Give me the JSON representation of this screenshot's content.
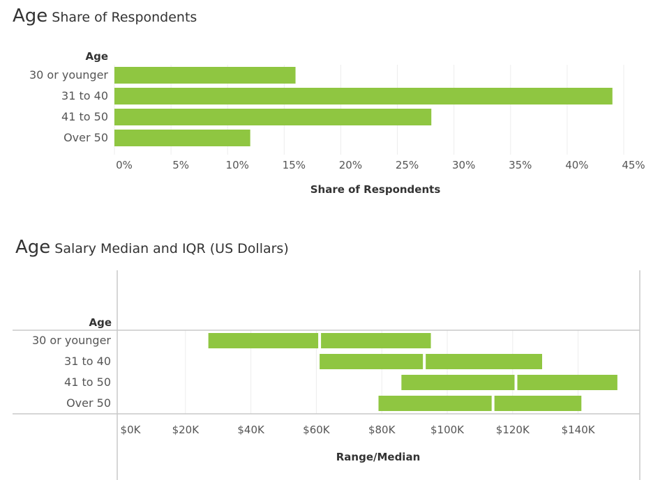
{
  "chart_data": [
    {
      "type": "bar",
      "orientation": "horizontal",
      "title_main": "Age",
      "title_sub": "Share of Respondents",
      "row_header": "Age",
      "categories": [
        "30 or younger",
        "31 to 40",
        "41 to 50",
        "Over 50"
      ],
      "values": [
        16,
        44,
        28,
        12
      ],
      "xlabel": "Share of Respondents",
      "xlim": [
        0,
        45
      ],
      "xticks": [
        0,
        5,
        10,
        15,
        20,
        25,
        30,
        35,
        40,
        45
      ],
      "tick_labels": [
        "0%",
        "5%",
        "10%",
        "15%",
        "20%",
        "25%",
        "30%",
        "35%",
        "40%",
        "45%"
      ],
      "grid": true,
      "color": "#8FC641"
    },
    {
      "type": "bar",
      "orientation": "horizontal-range",
      "title_main": "Age",
      "title_sub": "Salary Median and IQR (US Dollars)",
      "row_header": "Age",
      "categories": [
        "30 or younger",
        "31 to 40",
        "41 to 50",
        "Over 50"
      ],
      "ranges": [
        {
          "q1": 27000,
          "median": 61000,
          "q3": 95000
        },
        {
          "q1": 61000,
          "median": 93000,
          "q3": 129000
        },
        {
          "q1": 86000,
          "median": 121000,
          "q3": 152000
        },
        {
          "q1": 79000,
          "median": 114000,
          "q3": 141000
        }
      ],
      "xlabel": "Range/Median",
      "xlim": [
        0,
        150000
      ],
      "xticks": [
        0,
        20000,
        40000,
        60000,
        80000,
        100000,
        120000,
        140000
      ],
      "tick_labels": [
        "$0K",
        "$20K",
        "$40K",
        "$60K",
        "$80K",
        "$100K",
        "$120K",
        "$140K"
      ],
      "grid": true,
      "color": "#8FC641"
    }
  ]
}
